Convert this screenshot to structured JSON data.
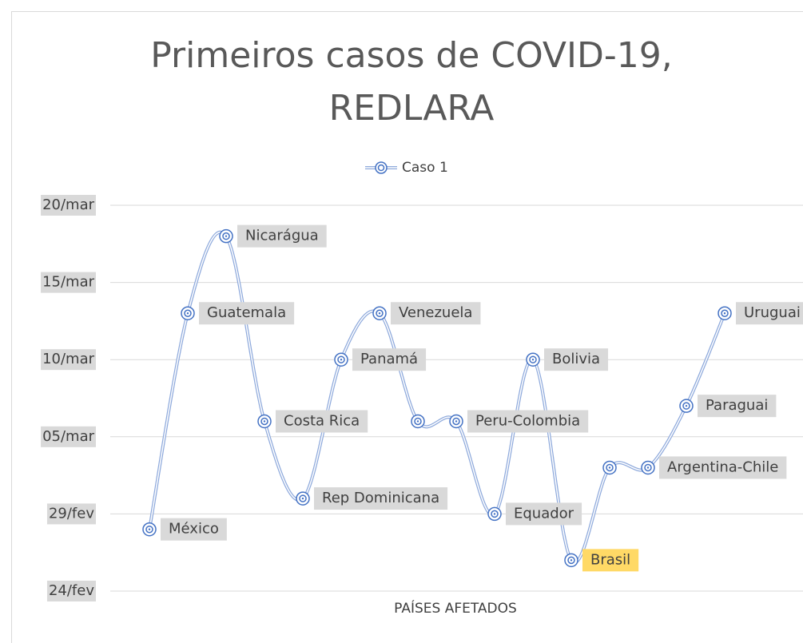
{
  "chart_data": {
    "type": "line",
    "title": "Primeiros casos de COVID-19,",
    "subtitle": "REDLARA",
    "x_label": "PAÍSES AFETADOS",
    "categories": [
      "México",
      "Guatemala",
      "Nicarágua",
      "Costa Rica",
      "Rep Dominicana",
      "Panamá",
      "Venezuela",
      null,
      "Peru-Colombia",
      "Equador",
      "Bolivia",
      "Brasil",
      null,
      "Argentina-Chile",
      "Paraguai",
      "Uruguai"
    ],
    "series": [
      {
        "name": "Caso 1",
        "color": "#8faadc",
        "values": [
          43889,
          43903,
          43908,
          43896,
          43891,
          43900,
          43903,
          43896,
          43896,
          43890,
          43900,
          43887,
          43893,
          43893,
          43897,
          43903
        ]
      }
    ],
    "ylim": [
      43885,
      43910
    ],
    "yticks": [
      {
        "value": 43885,
        "label": "24/fev"
      },
      {
        "value": 43890,
        "label": "29/fev"
      },
      {
        "value": 43895,
        "label": "05/mar"
      },
      {
        "value": 43900,
        "label": "10/mar"
      },
      {
        "value": 43905,
        "label": "15/mar"
      },
      {
        "value": 43910,
        "label": "20/mar"
      }
    ],
    "grid": true,
    "legend": "top",
    "smooth": true,
    "label_color": "#d9d9d9",
    "highlight": {
      "category": "Brasil",
      "color": "#ffd966"
    }
  }
}
